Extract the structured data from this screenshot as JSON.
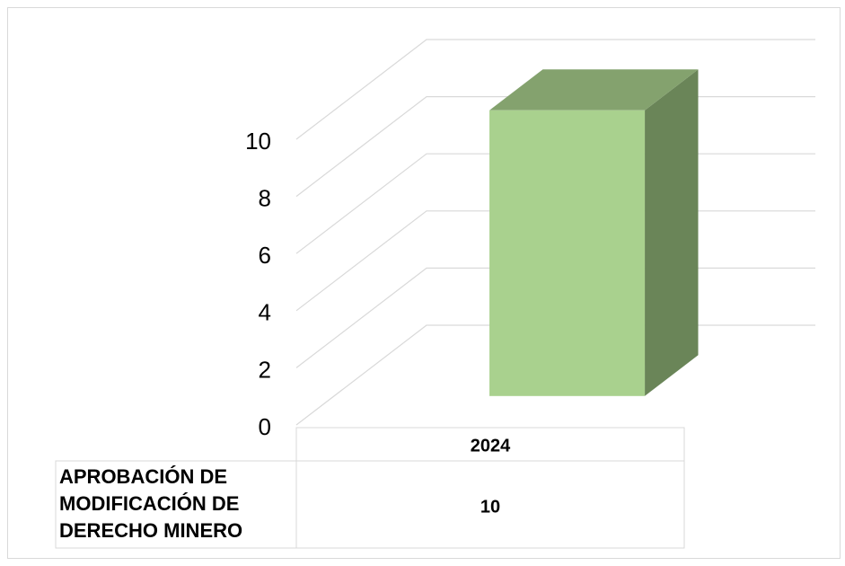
{
  "chart_data": {
    "type": "bar3d",
    "categories": [
      "2024"
    ],
    "series": [
      {
        "name": "APROBACIÓN DE MODIFICACIÓN DE DERECHO MINERO",
        "color": "#a9d18e",
        "values": [
          10
        ]
      }
    ],
    "ylim": [
      0,
      10
    ],
    "yticks": [
      0,
      2,
      4,
      6,
      8,
      10
    ],
    "grid": true,
    "data_table": true
  }
}
